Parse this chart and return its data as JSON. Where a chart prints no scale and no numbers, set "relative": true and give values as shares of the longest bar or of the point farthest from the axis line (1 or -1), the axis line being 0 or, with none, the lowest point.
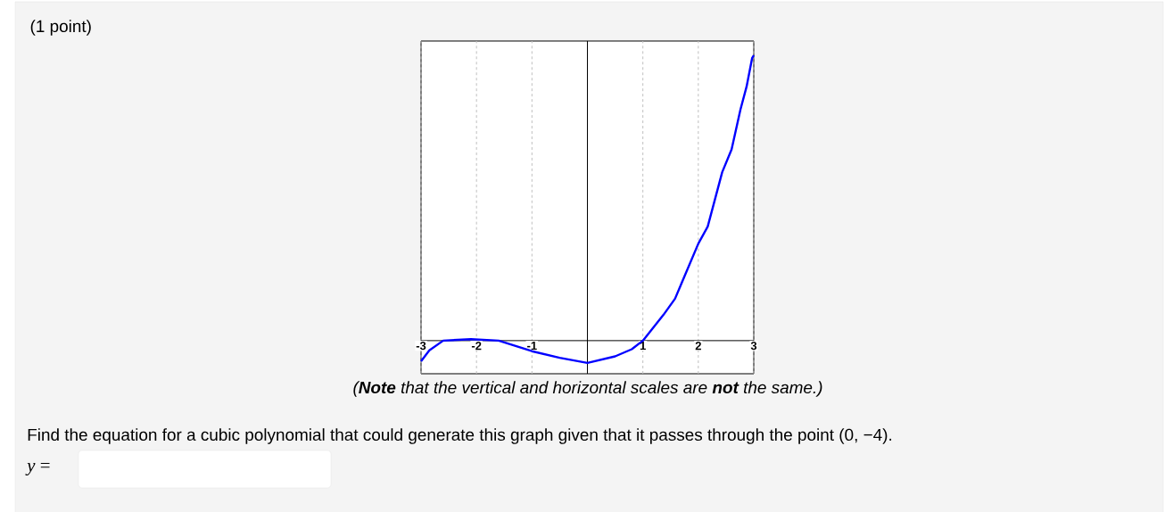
{
  "chart_data": {
    "type": "line",
    "title": "(1 point)",
    "annotations": [
      "(**Note** that the vertical and horizontal scales are **not** the same.)",
      "Find the equation for a cubic polynomial that could generate this graph given that it passes through the point (0, −4).",
      "*y* ="
    ],
    "relative": true,
    "x": [
      -3,
      -2.85,
      -2.6,
      -2.1,
      -1.6,
      -1,
      -0.5,
      0,
      0.5,
      0.8,
      1,
      1.37,
      1.58,
      2,
      2.17,
      2.43,
      2.6,
      2.76,
      2.87,
      2.97,
      3
    ],
    "series": [
      {
        "color": "#0000ff",
        "values": [
          -0.072,
          -0.034,
          0,
          0.005,
          0,
          -0.037,
          -0.06,
          -0.078,
          -0.055,
          -0.03,
          0,
          0.09,
          0.147,
          0.34,
          0.4,
          0.59,
          0.67,
          0.81,
          0.89,
          0.99,
          1
        ]
      }
    ],
    "xlim": [
      -3,
      3
    ],
    "xticks": [
      -3,
      -2,
      -1,
      1,
      2,
      3
    ],
    "grid": "x"
  }
}
